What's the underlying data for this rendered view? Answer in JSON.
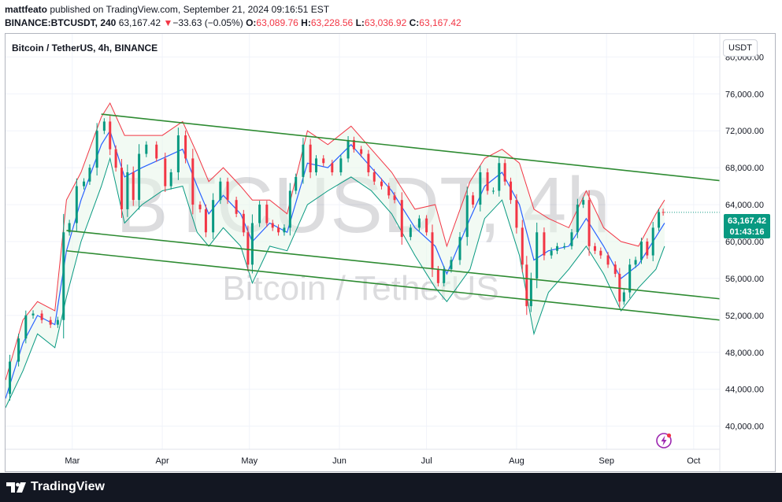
{
  "header": {
    "author": "mattfeato",
    "published_text": " published on TradingView.com, September 21, 2024 09:16:51 EST",
    "symbol": "BINANCE:BTCUSDT, 240",
    "last": "63,167.42",
    "change_arrow": "▼",
    "change": "−33.63 (−0.05%)",
    "o_label": "O:",
    "o": "63,089.76",
    "h_label": "H:",
    "h": "63,228.56",
    "l_label": "L:",
    "l": "63,036.92",
    "c_label": "C:",
    "c": "63,167.42"
  },
  "chart": {
    "series_title": "Bitcoin / TetherUS, 4h, BINANCE",
    "watermark_symbol": "BTCUSDT, 4h",
    "watermark_name": "Bitcoin / TetherUS",
    "currency": "USDT",
    "price_badge": {
      "price": "63,167.42",
      "countdown": "01:43:16"
    }
  },
  "colors": {
    "up": "#089981",
    "down": "#f23645",
    "channel": "#2e8b32",
    "upper_band": "#f23645",
    "lower_band": "#089981",
    "mid_band": "#2962ff"
  },
  "footer": {
    "brand": "TradingView"
  },
  "icons": {
    "logo": "tradingview-logo-icon",
    "flash": "lightning-icon"
  },
  "chart_data": {
    "type": "candlestick",
    "title": "Bitcoin / TetherUS, 4h, BINANCE",
    "x_ticks": [
      "Mar",
      "Apr",
      "May",
      "Jun",
      "Jul",
      "Aug",
      "Sep",
      "Oct"
    ],
    "y_ticks": [
      40000,
      44000,
      48000,
      52000,
      56000,
      60000,
      64000,
      68000,
      72000,
      76000,
      80000
    ],
    "y_tick_labels": [
      "40,000.00",
      "44,000.00",
      "48,000.00",
      "52,000.00",
      "56,000.00",
      "60,000.00",
      "64,000.00",
      "68,000.00",
      "72,000.00",
      "76,000.00",
      "80,000.00"
    ],
    "ylim": [
      37500,
      82500
    ],
    "xlim": [
      "2024-02-07",
      "2024-10-10"
    ],
    "grid": true,
    "last_price": 63167.42,
    "series": [
      {
        "name": "BTCUSDT close",
        "points": [
          [
            "2024-02-07",
            43500
          ],
          [
            "2024-02-10",
            47000
          ],
          [
            "2024-02-13",
            49500
          ],
          [
            "2024-02-15",
            52000
          ],
          [
            "2024-02-18",
            52200
          ],
          [
            "2024-02-21",
            51500
          ],
          [
            "2024-02-24",
            51000
          ],
          [
            "2024-02-26",
            51500
          ],
          [
            "2024-02-28",
            61000
          ],
          [
            "2024-03-01",
            62000
          ],
          [
            "2024-03-04",
            66000
          ],
          [
            "2024-03-06",
            66500
          ],
          [
            "2024-03-08",
            68000
          ],
          [
            "2024-03-11",
            72000
          ],
          [
            "2024-03-13",
            73000
          ],
          [
            "2024-03-15",
            70000
          ],
          [
            "2024-03-17",
            68000
          ],
          [
            "2024-03-19",
            63500
          ],
          [
            "2024-03-21",
            67500
          ],
          [
            "2024-03-23",
            64500
          ],
          [
            "2024-03-25",
            69500
          ],
          [
            "2024-03-28",
            70500
          ],
          [
            "2024-04-01",
            69000
          ],
          [
            "2024-04-03",
            66000
          ],
          [
            "2024-04-05",
            67500
          ],
          [
            "2024-04-08",
            71500
          ],
          [
            "2024-04-10",
            69000
          ],
          [
            "2024-04-13",
            64000
          ],
          [
            "2024-04-15",
            63500
          ],
          [
            "2024-04-17",
            61000
          ],
          [
            "2024-04-20",
            64500
          ],
          [
            "2024-04-22",
            66500
          ],
          [
            "2024-04-25",
            64500
          ],
          [
            "2024-04-28",
            63000
          ],
          [
            "2024-04-30",
            61000
          ],
          [
            "2024-05-01",
            57500
          ],
          [
            "2024-05-03",
            62000
          ],
          [
            "2024-05-06",
            64000
          ],
          [
            "2024-05-08",
            62000
          ],
          [
            "2024-05-10",
            61500
          ],
          [
            "2024-05-12",
            61000
          ],
          [
            "2024-05-14",
            61500
          ],
          [
            "2024-05-16",
            65500
          ],
          [
            "2024-05-18",
            67000
          ],
          [
            "2024-05-21",
            70500
          ],
          [
            "2024-05-23",
            67500
          ],
          [
            "2024-05-25",
            69000
          ],
          [
            "2024-05-28",
            68500
          ],
          [
            "2024-05-31",
            67500
          ],
          [
            "2024-06-03",
            69000
          ],
          [
            "2024-06-05",
            71000
          ],
          [
            "2024-06-07",
            70000
          ],
          [
            "2024-06-10",
            69500
          ],
          [
            "2024-06-12",
            67500
          ],
          [
            "2024-06-14",
            66500
          ],
          [
            "2024-06-17",
            66000
          ],
          [
            "2024-06-19",
            65000
          ],
          [
            "2024-06-21",
            64500
          ],
          [
            "2024-06-24",
            60500
          ],
          [
            "2024-06-27",
            61500
          ],
          [
            "2024-06-30",
            62500
          ],
          [
            "2024-07-02",
            61000
          ],
          [
            "2024-07-04",
            57000
          ],
          [
            "2024-07-06",
            55500
          ],
          [
            "2024-07-08",
            57000
          ],
          [
            "2024-07-11",
            58000
          ],
          [
            "2024-07-14",
            60500
          ],
          [
            "2024-07-16",
            65000
          ],
          [
            "2024-07-18",
            64000
          ],
          [
            "2024-07-21",
            67500
          ],
          [
            "2024-07-23",
            65500
          ],
          [
            "2024-07-25",
            65500
          ],
          [
            "2024-07-27",
            68500
          ],
          [
            "2024-07-29",
            66500
          ],
          [
            "2024-07-31",
            64500
          ],
          [
            "2024-08-02",
            61500
          ],
          [
            "2024-08-04",
            57500
          ],
          [
            "2024-08-05",
            53000
          ],
          [
            "2024-08-07",
            56000
          ],
          [
            "2024-08-09",
            61000
          ],
          [
            "2024-08-12",
            58500
          ],
          [
            "2024-08-14",
            59000
          ],
          [
            "2024-08-16",
            59500
          ],
          [
            "2024-08-19",
            59500
          ],
          [
            "2024-08-21",
            61000
          ],
          [
            "2024-08-23",
            64000
          ],
          [
            "2024-08-25",
            64500
          ],
          [
            "2024-08-27",
            59500
          ],
          [
            "2024-08-29",
            59000
          ],
          [
            "2024-08-31",
            58500
          ],
          [
            "2024-09-03",
            57500
          ],
          [
            "2024-09-05",
            56500
          ],
          [
            "2024-09-06",
            53500
          ],
          [
            "2024-09-08",
            54500
          ],
          [
            "2024-09-10",
            57500
          ],
          [
            "2024-09-12",
            58000
          ],
          [
            "2024-09-14",
            60000
          ],
          [
            "2024-09-16",
            58500
          ],
          [
            "2024-09-18",
            61500
          ],
          [
            "2024-09-20",
            63200
          ],
          [
            "2024-09-21",
            63167
          ]
        ]
      },
      {
        "name": "Upper band",
        "points": [
          [
            "2024-02-07",
            45000
          ],
          [
            "2024-02-13",
            51500
          ],
          [
            "2024-02-18",
            53500
          ],
          [
            "2024-02-24",
            52500
          ],
          [
            "2024-02-28",
            64500
          ],
          [
            "2024-03-04",
            67500
          ],
          [
            "2024-03-11",
            73500
          ],
          [
            "2024-03-14",
            75000
          ],
          [
            "2024-03-19",
            71500
          ],
          [
            "2024-03-25",
            71500
          ],
          [
            "2024-04-01",
            71500
          ],
          [
            "2024-04-08",
            73000
          ],
          [
            "2024-04-13",
            69500
          ],
          [
            "2024-04-17",
            66500
          ],
          [
            "2024-04-22",
            68000
          ],
          [
            "2024-04-28",
            66000
          ],
          [
            "2024-05-02",
            64500
          ],
          [
            "2024-05-08",
            64500
          ],
          [
            "2024-05-14",
            63000
          ],
          [
            "2024-05-21",
            72000
          ],
          [
            "2024-05-28",
            70500
          ],
          [
            "2024-06-05",
            72500
          ],
          [
            "2024-06-12",
            70000
          ],
          [
            "2024-06-19",
            67500
          ],
          [
            "2024-06-27",
            63500
          ],
          [
            "2024-07-04",
            64000
          ],
          [
            "2024-07-08",
            59500
          ],
          [
            "2024-07-16",
            66500
          ],
          [
            "2024-07-21",
            69000
          ],
          [
            "2024-07-27",
            70000
          ],
          [
            "2024-08-02",
            68500
          ],
          [
            "2024-08-07",
            63500
          ],
          [
            "2024-08-12",
            62500
          ],
          [
            "2024-08-19",
            61500
          ],
          [
            "2024-08-25",
            65500
          ],
          [
            "2024-08-31",
            61500
          ],
          [
            "2024-09-06",
            60000
          ],
          [
            "2024-09-12",
            59500
          ],
          [
            "2024-09-18",
            63000
          ],
          [
            "2024-09-21",
            64500
          ]
        ]
      },
      {
        "name": "Mid band",
        "points": [
          [
            "2024-02-07",
            43000
          ],
          [
            "2024-02-13",
            49000
          ],
          [
            "2024-02-18",
            52000
          ],
          [
            "2024-02-24",
            51000
          ],
          [
            "2024-02-28",
            59000
          ],
          [
            "2024-03-04",
            64500
          ],
          [
            "2024-03-11",
            70500
          ],
          [
            "2024-03-14",
            72000
          ],
          [
            "2024-03-19",
            67000
          ],
          [
            "2024-03-25",
            68000
          ],
          [
            "2024-04-01",
            69000
          ],
          [
            "2024-04-08",
            70000
          ],
          [
            "2024-04-13",
            66000
          ],
          [
            "2024-04-17",
            63000
          ],
          [
            "2024-04-22",
            65000
          ],
          [
            "2024-04-28",
            63000
          ],
          [
            "2024-05-02",
            60000
          ],
          [
            "2024-05-08",
            62000
          ],
          [
            "2024-05-14",
            61000
          ],
          [
            "2024-05-21",
            68500
          ],
          [
            "2024-05-28",
            68000
          ],
          [
            "2024-06-05",
            70500
          ],
          [
            "2024-06-12",
            68000
          ],
          [
            "2024-06-19",
            65500
          ],
          [
            "2024-06-27",
            61500
          ],
          [
            "2024-07-04",
            59500
          ],
          [
            "2024-07-08",
            56500
          ],
          [
            "2024-07-16",
            62500
          ],
          [
            "2024-07-21",
            66000
          ],
          [
            "2024-07-27",
            67500
          ],
          [
            "2024-08-02",
            64000
          ],
          [
            "2024-08-07",
            58000
          ],
          [
            "2024-08-12",
            59000
          ],
          [
            "2024-08-19",
            59500
          ],
          [
            "2024-08-25",
            62500
          ],
          [
            "2024-08-31",
            59500
          ],
          [
            "2024-09-06",
            56000
          ],
          [
            "2024-09-12",
            57500
          ],
          [
            "2024-09-18",
            60500
          ],
          [
            "2024-09-21",
            62000
          ]
        ]
      },
      {
        "name": "Lower band",
        "points": [
          [
            "2024-02-07",
            42000
          ],
          [
            "2024-02-13",
            46000
          ],
          [
            "2024-02-18",
            50000
          ],
          [
            "2024-02-24",
            48500
          ],
          [
            "2024-02-28",
            54000
          ],
          [
            "2024-03-04",
            60000
          ],
          [
            "2024-03-11",
            66000
          ],
          [
            "2024-03-14",
            69000
          ],
          [
            "2024-03-19",
            62000
          ],
          [
            "2024-03-25",
            64000
          ],
          [
            "2024-04-01",
            65500
          ],
          [
            "2024-04-08",
            66000
          ],
          [
            "2024-04-13",
            61000
          ],
          [
            "2024-04-17",
            59500
          ],
          [
            "2024-04-22",
            61500
          ],
          [
            "2024-04-28",
            59500
          ],
          [
            "2024-05-02",
            55500
          ],
          [
            "2024-05-08",
            59500
          ],
          [
            "2024-05-14",
            59000
          ],
          [
            "2024-05-21",
            64000
          ],
          [
            "2024-05-28",
            65500
          ],
          [
            "2024-06-05",
            67000
          ],
          [
            "2024-06-12",
            65500
          ],
          [
            "2024-06-19",
            63000
          ],
          [
            "2024-06-27",
            58500
          ],
          [
            "2024-07-04",
            55000
          ],
          [
            "2024-07-08",
            53500
          ],
          [
            "2024-07-16",
            57000
          ],
          [
            "2024-07-21",
            62500
          ],
          [
            "2024-07-27",
            64500
          ],
          [
            "2024-08-02",
            58500
          ],
          [
            "2024-08-07",
            50000
          ],
          [
            "2024-08-12",
            54500
          ],
          [
            "2024-08-19",
            57000
          ],
          [
            "2024-08-25",
            59500
          ],
          [
            "2024-08-31",
            56500
          ],
          [
            "2024-09-06",
            52500
          ],
          [
            "2024-09-12",
            55000
          ],
          [
            "2024-09-18",
            57000
          ],
          [
            "2024-09-21",
            59500
          ]
        ]
      }
    ],
    "trendlines": [
      {
        "name": "Channel upper",
        "from": [
          "2024-03-11",
          73800
        ],
        "to": [
          "2024-10-10",
          66600
        ]
      },
      {
        "name": "Channel middle",
        "from": [
          "2024-02-28",
          61200
        ],
        "to": [
          "2024-10-10",
          53800
        ]
      },
      {
        "name": "Channel lower",
        "from": [
          "2024-02-28",
          59000
        ],
        "to": [
          "2024-10-10",
          51500
        ]
      }
    ]
  }
}
